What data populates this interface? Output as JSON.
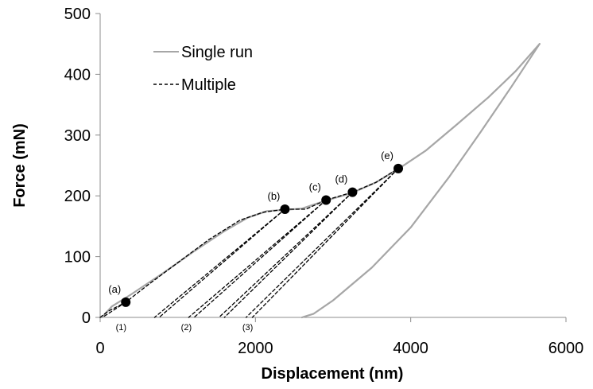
{
  "chart_data": {
    "type": "line",
    "title": "",
    "xlabel": "Displacement (nm)",
    "ylabel": "Force (mN)",
    "xlim": [
      0,
      6000
    ],
    "ylim": [
      0,
      500
    ],
    "x_ticks": [
      0,
      2000,
      4000,
      6000
    ],
    "y_ticks": [
      0,
      100,
      200,
      300,
      400,
      500
    ],
    "x_tick_labels": [
      "0",
      "2000",
      "4000",
      "6000"
    ],
    "y_tick_labels": [
      "0",
      "100",
      "200",
      "300",
      "400",
      "500"
    ],
    "grid": false,
    "legend": {
      "position": "top-left",
      "entries": [
        "Single run",
        "Multiple"
      ]
    },
    "colors": {
      "single": "#a6a6a6",
      "multiple": "#000000",
      "points": "#000000"
    },
    "series": [
      {
        "name": "Single run",
        "style": "solid",
        "segments": [
          {
            "x": [
              20,
              150,
              400,
              800,
              1200,
              1600,
              1900,
              2150,
              2380,
              2600,
              2900,
              3250,
              3550,
              3850,
              4200,
              4600,
              5000,
              5350,
              5660
            ],
            "y": [
              0,
              18,
              38,
              72,
              108,
              142,
              164,
              175,
              177,
              179,
              192,
              205,
              222,
              245,
              275,
              318,
              362,
              405,
              450
            ]
          },
          {
            "x": [
              5660,
              5300,
              4900,
              4500,
              4000,
              3500,
              3000,
              2750,
              2600
            ],
            "y": [
              450,
              380,
              305,
              232,
              148,
              82,
              28,
              6,
              0
            ]
          }
        ]
      },
      {
        "name": "Multiple",
        "style": "dashed",
        "segments": [
          {
            "x": [
              0,
              100,
              330,
              600,
              1000,
              1400,
              1800,
              2100,
              2380,
              2650,
              2910,
              3250,
              3550,
              3840
            ],
            "y": [
              0,
              10,
              25,
              52,
              90,
              128,
              160,
              173,
              178,
              178,
              193,
              206,
              222,
              245
            ]
          },
          {
            "x": [
              330,
              30
            ],
            "y": [
              25,
              0
            ]
          },
          {
            "x": [
              2380,
              700
            ],
            "y": [
              178,
              0
            ]
          },
          {
            "x": [
              2380,
              760
            ],
            "y": [
              178,
              0
            ]
          },
          {
            "x": [
              2910,
              1140
            ],
            "y": [
              193,
              0
            ]
          },
          {
            "x": [
              2910,
              1210
            ],
            "y": [
              193,
              0
            ]
          },
          {
            "x": [
              3250,
              1530
            ],
            "y": [
              206,
              0
            ]
          },
          {
            "x": [
              3250,
              1600
            ],
            "y": [
              206,
              0
            ]
          },
          {
            "x": [
              3840,
              1880
            ],
            "y": [
              245,
              0
            ]
          },
          {
            "x": [
              3840,
              1960
            ],
            "y": [
              245,
              0
            ]
          }
        ]
      }
    ],
    "markers": [
      {
        "label": "(a)",
        "x": 330,
        "y": 25
      },
      {
        "label": "(b)",
        "x": 2380,
        "y": 178
      },
      {
        "label": "(c)",
        "x": 2910,
        "y": 193
      },
      {
        "label": "(d)",
        "x": 3250,
        "y": 206
      },
      {
        "label": "(e)",
        "x": 3840,
        "y": 245
      }
    ],
    "annotations": [
      {
        "text": "(1)",
        "x": 270,
        "y": -14
      },
      {
        "text": "(2)",
        "x": 1110,
        "y": -14
      },
      {
        "text": "(3)",
        "x": 1900,
        "y": -14
      }
    ]
  }
}
